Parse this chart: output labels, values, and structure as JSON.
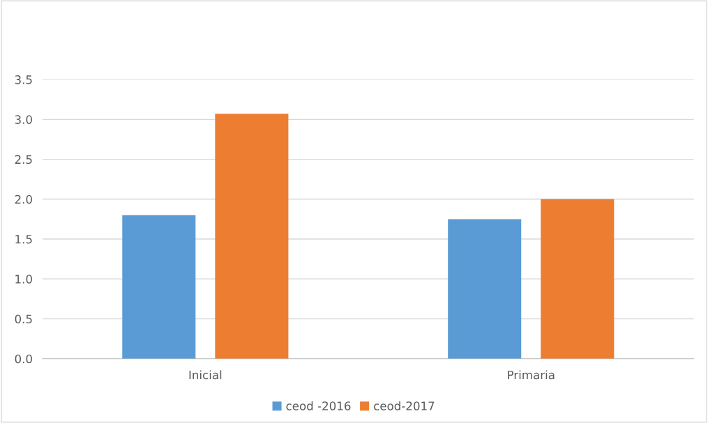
{
  "chart_data": {
    "type": "bar",
    "categories": [
      "Inicial",
      "Primaria"
    ],
    "series": [
      {
        "name": "ceod -2016",
        "color": "#5b9bd5",
        "values": [
          1.8,
          1.75
        ]
      },
      {
        "name": "ceod-2017",
        "color": "#ed7d31",
        "values": [
          3.07,
          2.0
        ]
      }
    ],
    "ylim": [
      0,
      3.5
    ],
    "yticks": [
      {
        "value": 0,
        "label": "0.0"
      },
      {
        "value": 0.5,
        "label": "0.5"
      },
      {
        "value": 1,
        "label": "1.0"
      },
      {
        "value": 1.5,
        "label": "1.5"
      },
      {
        "value": 2,
        "label": "2.0"
      },
      {
        "value": 2.5,
        "label": "2.5"
      },
      {
        "value": 3,
        "label": "3.0"
      },
      {
        "value": 3.5,
        "label": "3.5"
      }
    ],
    "grid": "y",
    "legend": "bottom"
  }
}
